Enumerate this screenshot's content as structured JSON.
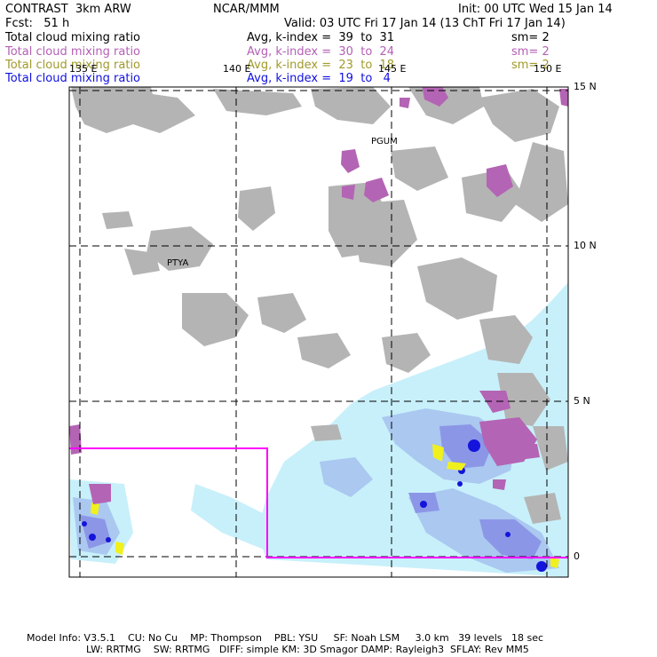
{
  "header": {
    "left_line1": "CONTRAST  3km ARW",
    "center_line1": "NCAR/MMM",
    "right_line1": "Init: 00 UTC Wed 15 Jan 14",
    "left_line2": "Fcst:   51 h",
    "right_line2": "Valid: 03 UTC Fri 17 Jan 14 (13 ChT Fri 17 Jan 14)"
  },
  "legend": [
    {
      "name": "Total cloud mixing ratio",
      "stat": "Avg, k-index =  39  to  31",
      "sm": "sm= 2",
      "color": "#000000"
    },
    {
      "name": "Total cloud mixing ratio",
      "stat": "Avg, k-index =  30  to  24",
      "sm": "sm= 2",
      "color": "#b45fb4"
    },
    {
      "name": "Total cloud mixing ratio",
      "stat": "Avg, k-index =  23  to  18",
      "sm": "sm= 2",
      "color": "#a09a2a"
    },
    {
      "name": "Total cloud mixing ratio",
      "stat": "Avg, k-index =  19  to   4",
      "sm": "",
      "color": "#1010e0"
    }
  ],
  "map": {
    "lon_labels": [
      "135 E",
      "140 E",
      "145 E",
      "150 E"
    ],
    "lat_labels": [
      "15 N",
      "10 N",
      "5 N",
      "0"
    ],
    "stations": [
      "PGUM",
      "PTYA"
    ],
    "colors": {
      "gray_cloud": "#b4b4b4",
      "purple_cloud": "#b464b4",
      "light_cyan": "#c8f0fa",
      "pale_blue": "#aac8f0",
      "medium_blue": "#8c96e6",
      "deep_blue": "#1414dc",
      "yellow": "#f0f01e",
      "box": "#ff00ff"
    }
  },
  "footer": {
    "line1": "Model Info: V3.5.1    CU: No Cu    MP: Thompson    PBL: YSU     SF: Noah LSM     3.0 km   39 levels   18 sec",
    "line2": "LW: RRTMG    SW: RRTMG   DIFF: simple KM: 3D Smagor DAMP: Rayleigh3  SFLAY: Rev MM5"
  }
}
